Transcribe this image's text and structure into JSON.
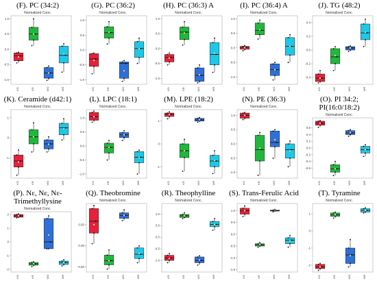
{
  "figure": {
    "subtitle": "Normalized Conc."
  },
  "colors": {
    "KO": "#e8203a",
    "KR": "#20b83c",
    "WO": "#2f6fd8",
    "WR": "#1ec8e8"
  },
  "chart_data": [
    {
      "type": "box",
      "title": "(F). PC (34:2)",
      "subtitle": "Normalized Conc.",
      "categories": [
        "KO",
        "KR",
        "WO",
        "WR"
      ],
      "ylim": [
        -1.15,
        1.1
      ],
      "yticks": [
        1.0,
        0.5,
        0.0,
        -0.5,
        -1.0
      ],
      "ytick_labels": [
        "1.0",
        "0.5",
        "0.0",
        "-0.5",
        "-1.0"
      ],
      "boxes": [
        {
          "q1": -0.38,
          "median": -0.22,
          "q3": -0.12,
          "low": -0.45,
          "high": -0.1,
          "mean": -0.25
        },
        {
          "q1": 0.3,
          "median": 0.5,
          "q3": 0.72,
          "low": 0.12,
          "high": 1.0,
          "mean": 0.5
        },
        {
          "q1": -0.95,
          "median": -0.78,
          "q3": -0.6,
          "low": -1.02,
          "high": -0.55,
          "mean": -0.78
        },
        {
          "q1": -0.45,
          "median": -0.2,
          "q3": 0.1,
          "low": -0.75,
          "high": 0.18,
          "mean": -0.15
        }
      ]
    },
    {
      "type": "box",
      "title": "(G). PC (36:2)",
      "subtitle": "Normalized Conc.",
      "categories": [
        "KO",
        "KR",
        "WO",
        "WR"
      ],
      "ylim": [
        -1.15,
        1.15
      ],
      "yticks": [
        1.0,
        0.5,
        0.0,
        -0.5,
        -1.0
      ],
      "ytick_labels": [
        "1.0",
        "0.5",
        "0.0",
        "-0.5",
        "-1.0"
      ],
      "boxes": [
        {
          "q1": -0.55,
          "median": -0.3,
          "q3": -0.12,
          "low": -0.8,
          "high": -0.1,
          "mean": -0.35
        },
        {
          "q1": 0.4,
          "median": 0.58,
          "q3": 0.78,
          "low": 0.2,
          "high": 0.95,
          "mean": 0.6
        },
        {
          "q1": -0.95,
          "median": -0.45,
          "q3": -0.4,
          "low": -1.05,
          "high": -0.35,
          "mean": -0.7
        },
        {
          "q1": -0.25,
          "median": 0.05,
          "q3": 0.28,
          "low": -0.45,
          "high": 0.4,
          "mean": 0.05
        }
      ]
    },
    {
      "type": "box",
      "title": "(H). PC (36:3) A",
      "subtitle": "Normalized Conc.",
      "categories": [
        "KO",
        "KR",
        "WO",
        "WR"
      ],
      "ylim": [
        -1.2,
        1.1
      ],
      "yticks": [
        1.0,
        0.5,
        0.0,
        -0.5,
        -1.0
      ],
      "ytick_labels": [
        "1.0",
        "0.5",
        "0.0",
        "-0.5",
        "-1.0"
      ],
      "boxes": [
        {
          "q1": -0.45,
          "median": -0.3,
          "q3": -0.2,
          "low": -0.55,
          "high": -0.15,
          "mean": -0.32
        },
        {
          "q1": 0.3,
          "median": 0.55,
          "q3": 0.72,
          "low": 0.12,
          "high": 0.9,
          "mean": 0.52
        },
        {
          "q1": -1.1,
          "median": -0.9,
          "q3": -0.65,
          "low": -1.15,
          "high": -0.55,
          "mean": -0.88
        },
        {
          "q1": -0.55,
          "median": -0.2,
          "q3": 0.2,
          "low": -0.8,
          "high": 0.35,
          "mean": -0.15
        }
      ]
    },
    {
      "type": "box",
      "title": "(I). PC (36:4) A",
      "subtitle": "Normalized Conc.",
      "categories": [
        "KO",
        "KR",
        "WO",
        "WR"
      ],
      "ylim": [
        -1.25,
        1.1
      ],
      "yticks": [
        1.0,
        0.5,
        0.0,
        -0.5,
        -1.0
      ],
      "ytick_labels": [
        "1.0",
        "0.5",
        "0.0",
        "-0.5",
        "-1.0"
      ],
      "boxes": [
        {
          "q1": -0.05,
          "median": 0.02,
          "q3": 0.05,
          "low": -0.1,
          "high": 0.08,
          "mean": 0.0
        },
        {
          "q1": 0.45,
          "median": 0.6,
          "q3": 0.85,
          "low": 0.3,
          "high": 0.95,
          "mean": 0.62
        },
        {
          "q1": -0.95,
          "median": -0.75,
          "q3": -0.55,
          "low": -1.1,
          "high": -0.5,
          "mean": -0.75
        },
        {
          "q1": -0.25,
          "median": 0.05,
          "q3": 0.35,
          "low": -0.5,
          "high": 0.45,
          "mean": 0.05
        }
      ]
    },
    {
      "type": "box",
      "title": "(J). TG (48:2)",
      "subtitle": "Normalized Conc.",
      "categories": [
        "KO",
        "KR",
        "WO",
        "WR"
      ],
      "ylim": [
        -0.5,
        0.5
      ],
      "yticks": [
        0.4,
        0.2,
        0.0,
        -0.2,
        -0.4
      ],
      "ytick_labels": [
        "0.4",
        "0.2",
        "0.0",
        "-0.2",
        "-0.4"
      ],
      "boxes": [
        {
          "q1": -0.46,
          "median": -0.41,
          "q3": -0.35,
          "low": -0.48,
          "high": -0.3,
          "mean": -0.41
        },
        {
          "q1": -0.2,
          "median": -0.1,
          "q3": 0.02,
          "low": -0.3,
          "high": 0.05,
          "mean": -0.08
        },
        {
          "q1": 0.0,
          "median": 0.03,
          "q3": 0.05,
          "low": -0.02,
          "high": 0.06,
          "mean": 0.03
        },
        {
          "q1": 0.15,
          "median": 0.25,
          "q3": 0.38,
          "low": 0.05,
          "high": 0.45,
          "mean": 0.26
        }
      ]
    },
    {
      "type": "box",
      "title": "(K). Ceramide (d42:1)",
      "subtitle": "Normalized Conc.",
      "categories": [
        "KO",
        "KR",
        "WO",
        "WR"
      ],
      "ylim": [
        -2.0,
        1.4
      ],
      "yticks": [
        1,
        0,
        -1
      ],
      "ytick_labels": [
        "1",
        "0",
        "-1"
      ],
      "boxes": [
        {
          "q1": -1.45,
          "median": -1.15,
          "q3": -0.85,
          "low": -1.85,
          "high": -0.6,
          "mean": -1.2
        },
        {
          "q1": -0.3,
          "median": 0.05,
          "q3": 0.4,
          "low": -0.7,
          "high": 0.75,
          "mean": 0.05
        },
        {
          "q1": -0.55,
          "median": -0.3,
          "q3": -0.1,
          "low": -0.7,
          "high": 0.05,
          "mean": -0.32
        },
        {
          "q1": 0.15,
          "median": 0.5,
          "q3": 0.72,
          "low": -0.1,
          "high": 0.95,
          "mean": 0.45
        }
      ]
    },
    {
      "type": "box",
      "title": "(L). LPC (18:1)",
      "subtitle": "Normalized Conc.",
      "categories": [
        "KO",
        "KR",
        "WO",
        "WR"
      ],
      "ylim": [
        -1.15,
        1.3
      ],
      "yticks": [
        1.0,
        0.5,
        0.0,
        -0.5,
        -1.0
      ],
      "ytick_labels": [
        "1.0",
        "0.5",
        "0.0",
        "-0.5",
        "-1.0"
      ],
      "boxes": [
        {
          "q1": 0.92,
          "median": 1.05,
          "q3": 1.2,
          "low": 0.85,
          "high": 1.25,
          "mean": 1.05
        },
        {
          "q1": -0.25,
          "median": -0.05,
          "q3": 0.1,
          "low": -0.5,
          "high": 0.2,
          "mean": -0.05
        },
        {
          "q1": 0.3,
          "median": 0.4,
          "q3": 0.48,
          "low": 0.2,
          "high": 0.55,
          "mean": 0.4
        },
        {
          "q1": -0.6,
          "median": -0.4,
          "q3": -0.2,
          "low": -1.0,
          "high": -0.15,
          "mean": -0.42
        }
      ]
    },
    {
      "type": "box",
      "title": "(M). LPE (18:2)",
      "subtitle": "Normalized Conc.",
      "categories": [
        "KO",
        "KR",
        "WO",
        "WR"
      ],
      "ylim": [
        -1.5,
        1.5
      ],
      "yticks": [
        1,
        0,
        -1
      ],
      "ytick_labels": [
        "1",
        "0",
        "-1"
      ],
      "boxes": [
        {
          "q1": 1.2,
          "median": 1.3,
          "q3": 1.35,
          "low": 1.1,
          "high": 1.4,
          "mean": 1.28
        },
        {
          "q1": -0.6,
          "median": -0.3,
          "q3": 0.0,
          "low": -1.2,
          "high": 0.2,
          "mean": -0.3
        },
        {
          "q1": 1.0,
          "median": 1.05,
          "q3": 1.12,
          "low": 0.95,
          "high": 1.15,
          "mean": 1.05
        },
        {
          "q1": -1.0,
          "median": -0.75,
          "q3": -0.5,
          "low": -1.3,
          "high": -0.3,
          "mean": -0.72
        }
      ]
    },
    {
      "type": "box",
      "title": "(N). PE (36:3)",
      "subtitle": "Normalized Conc.",
      "categories": [
        "KO",
        "KR",
        "WO",
        "WR"
      ],
      "ylim": [
        -1.2,
        1.2
      ],
      "yticks": [
        1.0,
        0.5,
        0.0,
        -0.5,
        -1.0
      ],
      "ytick_labels": [
        "1.0",
        "0.5",
        "0.0",
        "-0.5",
        "-1.0"
      ],
      "boxes": [
        {
          "q1": 0.9,
          "median": 1.0,
          "q3": 1.08,
          "low": 0.85,
          "high": 1.1,
          "mean": 1.0
        },
        {
          "q1": -0.6,
          "median": -0.2,
          "q3": 0.3,
          "low": -1.1,
          "high": 0.4,
          "mean": -0.15
        },
        {
          "q1": -0.1,
          "median": 0.05,
          "q3": 0.45,
          "low": -0.5,
          "high": 0.5,
          "mean": 0.15
        },
        {
          "q1": -0.5,
          "median": -0.2,
          "q3": 0.0,
          "low": -0.8,
          "high": 0.1,
          "mean": -0.25
        }
      ]
    },
    {
      "type": "box",
      "title": "(O). PI 34:2;\nPI(16:0/18:2)",
      "subtitle": "Normalized Conc.",
      "categories": [
        "KO",
        "KR",
        "WO",
        "WR"
      ],
      "ylim": [
        -0.9,
        0.9
      ],
      "yticks": [
        0.6,
        0.4,
        0.2,
        0.0,
        -0.2,
        -0.4,
        -0.6
      ],
      "ytick_labels": [
        "0.6",
        "0.4",
        "0.2",
        "0.0",
        "-0.2",
        "-0.4",
        "-0.6"
      ],
      "boxes": [
        {
          "q1": 0.68,
          "median": 0.74,
          "q3": 0.8,
          "low": 0.62,
          "high": 0.82,
          "mean": 0.73
        },
        {
          "q1": -0.72,
          "median": -0.62,
          "q3": -0.5,
          "low": -0.82,
          "high": -0.4,
          "mean": -0.62
        },
        {
          "q1": 0.4,
          "median": 0.45,
          "q3": 0.52,
          "low": 0.35,
          "high": 0.55,
          "mean": 0.46
        },
        {
          "q1": -0.15,
          "median": -0.05,
          "q3": 0.05,
          "low": -0.25,
          "high": 0.1,
          "mean": -0.05
        }
      ]
    },
    {
      "type": "box",
      "title": "(P). Nε, Nε, Nε-\nTrimethyllysine",
      "subtitle": "Normalized Conc.",
      "categories": [
        "KO",
        "KR",
        "WO",
        "WR"
      ],
      "ylim": [
        -2.2,
        2.2
      ],
      "yticks": [
        2,
        1,
        0,
        -1,
        -2
      ],
      "ytick_labels": [
        "2",
        "1",
        "0",
        "-1",
        "-2"
      ],
      "boxes": [
        {
          "q1": 1.8,
          "median": 1.9,
          "q3": 2.0,
          "low": 1.75,
          "high": 2.05,
          "mean": 1.9
        },
        {
          "q1": -1.7,
          "median": -1.6,
          "q3": -1.5,
          "low": -1.8,
          "high": -1.45,
          "mean": -1.6
        },
        {
          "q1": -0.5,
          "median": 0.0,
          "q3": 1.7,
          "low": -0.5,
          "high": 1.9,
          "mean": 0.5
        },
        {
          "q1": -1.65,
          "median": -1.5,
          "q3": -1.4,
          "low": -1.75,
          "high": -1.3,
          "mean": -1.52
        }
      ]
    },
    {
      "type": "box",
      "title": "(Q). Theobromine",
      "subtitle": "Normalized Conc.",
      "categories": [
        "KO",
        "KR",
        "WO",
        "WR"
      ],
      "ylim": [
        -0.62,
        1.0
      ],
      "yticks": [
        0.5,
        0.0,
        -0.5
      ],
      "ytick_labels": [
        "0.50",
        "0.00",
        "-0.50"
      ],
      "boxes": [
        {
          "q1": 0.3,
          "median": 0.58,
          "q3": 0.88,
          "low": 0.05,
          "high": 0.95,
          "mean": 0.5
        },
        {
          "q1": -0.45,
          "median": -0.35,
          "q3": -0.22,
          "low": -0.55,
          "high": -0.1,
          "mean": -0.35
        },
        {
          "q1": 0.65,
          "median": 0.72,
          "q3": 0.78,
          "low": 0.6,
          "high": 0.85,
          "mean": 0.72
        },
        {
          "q1": -0.3,
          "median": -0.2,
          "q3": -0.05,
          "low": -0.4,
          "high": 0.0,
          "mean": -0.18
        }
      ]
    },
    {
      "type": "box",
      "title": "(R). Theophylline",
      "subtitle": "Normalized Conc.",
      "categories": [
        "KO",
        "KR",
        "WO",
        "WR"
      ],
      "ylim": [
        -1.5,
        1.45
      ],
      "yticks": [
        1.0,
        0.5,
        0.0,
        -0.5,
        -1.0
      ],
      "ytick_labels": [
        "1.0",
        "0.5",
        "0.0",
        "-0.5",
        "-1.0"
      ],
      "boxes": [
        {
          "q1": -1.0,
          "median": -0.9,
          "q3": -0.78,
          "low": -1.1,
          "high": -0.7,
          "mean": -0.92
        },
        {
          "q1": 0.85,
          "median": 0.92,
          "q3": 0.98,
          "low": 0.8,
          "high": 1.05,
          "mean": 0.92
        },
        {
          "q1": -1.1,
          "median": -1.0,
          "q3": -0.85,
          "low": -1.2,
          "high": -0.8,
          "mean": -0.98
        },
        {
          "q1": 0.45,
          "median": 0.55,
          "q3": 0.68,
          "low": 0.3,
          "high": 0.8,
          "mean": 0.55
        }
      ]
    },
    {
      "type": "box",
      "title": "(S). Trans-Ferulic Acid",
      "subtitle": "Normalized Conc.",
      "categories": [
        "KO",
        "KR",
        "WO",
        "WR"
      ],
      "ylim": [
        -1.6,
        1.3
      ],
      "yticks": [
        1.0,
        0.5,
        0.0,
        -0.5,
        -1.0,
        -1.5
      ],
      "ytick_labels": [
        "1.0",
        "0.5",
        "0.0",
        "-0.5",
        "-1.0",
        "-1.5"
      ],
      "boxes": [
        {
          "q1": 0.85,
          "median": 1.0,
          "q3": 1.1,
          "low": 0.75,
          "high": 1.2,
          "mean": 1.0
        },
        {
          "q1": -0.5,
          "median": -0.45,
          "q3": -0.4,
          "low": -0.55,
          "high": -0.35,
          "mean": -0.45
        },
        {
          "q1": 0.98,
          "median": 1.0,
          "q3": 1.02,
          "low": 0.95,
          "high": 1.05,
          "mean": 1.0
        },
        {
          "q1": -0.4,
          "median": -0.25,
          "q3": -0.15,
          "low": -0.55,
          "high": -0.05,
          "mean": -0.28
        }
      ]
    },
    {
      "type": "box",
      "title": "(T). Tyramine",
      "subtitle": "Normalized Conc.",
      "categories": [
        "KO",
        "KR",
        "WO",
        "WR"
      ],
      "ylim": [
        -2.4,
        1.6
      ],
      "yticks": [
        1,
        0,
        -1,
        -2
      ],
      "ytick_labels": [
        "1",
        "0",
        "-1",
        "-2"
      ],
      "boxes": [
        {
          "q1": -2.2,
          "median": -2.1,
          "q3": -1.95,
          "low": -2.3,
          "high": -1.9,
          "mean": -2.1
        },
        {
          "q1": 0.85,
          "median": 0.95,
          "q3": 1.05,
          "low": 0.75,
          "high": 1.1,
          "mean": 0.95
        },
        {
          "q1": -1.9,
          "median": -1.4,
          "q3": -1.0,
          "low": -2.1,
          "high": -0.5,
          "mean": -1.45
        },
        {
          "q1": 1.1,
          "median": 1.2,
          "q3": 1.3,
          "low": 1.05,
          "high": 1.35,
          "mean": 1.2
        }
      ]
    }
  ]
}
